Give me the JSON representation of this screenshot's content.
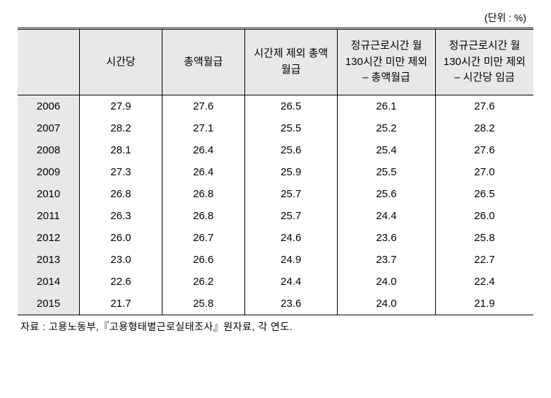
{
  "unit_label": "(단위 : %)",
  "columns": [
    "",
    "시간당",
    "총액월급",
    "시간제 제외 총액 월급",
    "정규근로시간 월 130시간 미만 제외 – 총액월급",
    "정규근로시간 월 130시간 미만 제외 – 시간당 임금"
  ],
  "rows": [
    {
      "year": "2006",
      "c1": "27.9",
      "c2": "27.6",
      "c3": "26.5",
      "c4": "26.1",
      "c5": "27.6"
    },
    {
      "year": "2007",
      "c1": "28.2",
      "c2": "27.1",
      "c3": "25.5",
      "c4": "25.2",
      "c5": "28.2"
    },
    {
      "year": "2008",
      "c1": "28.1",
      "c2": "26.4",
      "c3": "25.6",
      "c4": "25.4",
      "c5": "27.6"
    },
    {
      "year": "2009",
      "c1": "27.3",
      "c2": "26.4",
      "c3": "25.9",
      "c4": "25.5",
      "c5": "27.0"
    },
    {
      "year": "2010",
      "c1": "26.8",
      "c2": "26.8",
      "c3": "25.7",
      "c4": "25.6",
      "c5": "26.5"
    },
    {
      "year": "2011",
      "c1": "26.3",
      "c2": "26.8",
      "c3": "25.7",
      "c4": "24.4",
      "c5": "26.0"
    },
    {
      "year": "2012",
      "c1": "26.0",
      "c2": "26.7",
      "c3": "24.6",
      "c4": "23.6",
      "c5": "25.8"
    },
    {
      "year": "2013",
      "c1": "23.0",
      "c2": "26.6",
      "c3": "24.9",
      "c4": "23.7",
      "c5": "22.7"
    },
    {
      "year": "2014",
      "c1": "22.6",
      "c2": "26.2",
      "c3": "24.4",
      "c4": "24.0",
      "c5": "22.4"
    },
    {
      "year": "2015",
      "c1": "21.7",
      "c2": "25.8",
      "c3": "23.6",
      "c4": "24.0",
      "c5": "21.9"
    }
  ],
  "source_note": "자료 : 고용노동부,『고용형태별근로실태조사』원자료, 각 연도.",
  "styling": {
    "header_bg": "#e8e8e8",
    "year_cell_bg": "#e8e8e8",
    "border_color": "#000000",
    "background_color": "#ffffff",
    "font_size_body": 15,
    "font_size_note": 14,
    "column_widths_pct": [
      12,
      16,
      16,
      18,
      19,
      19
    ]
  }
}
